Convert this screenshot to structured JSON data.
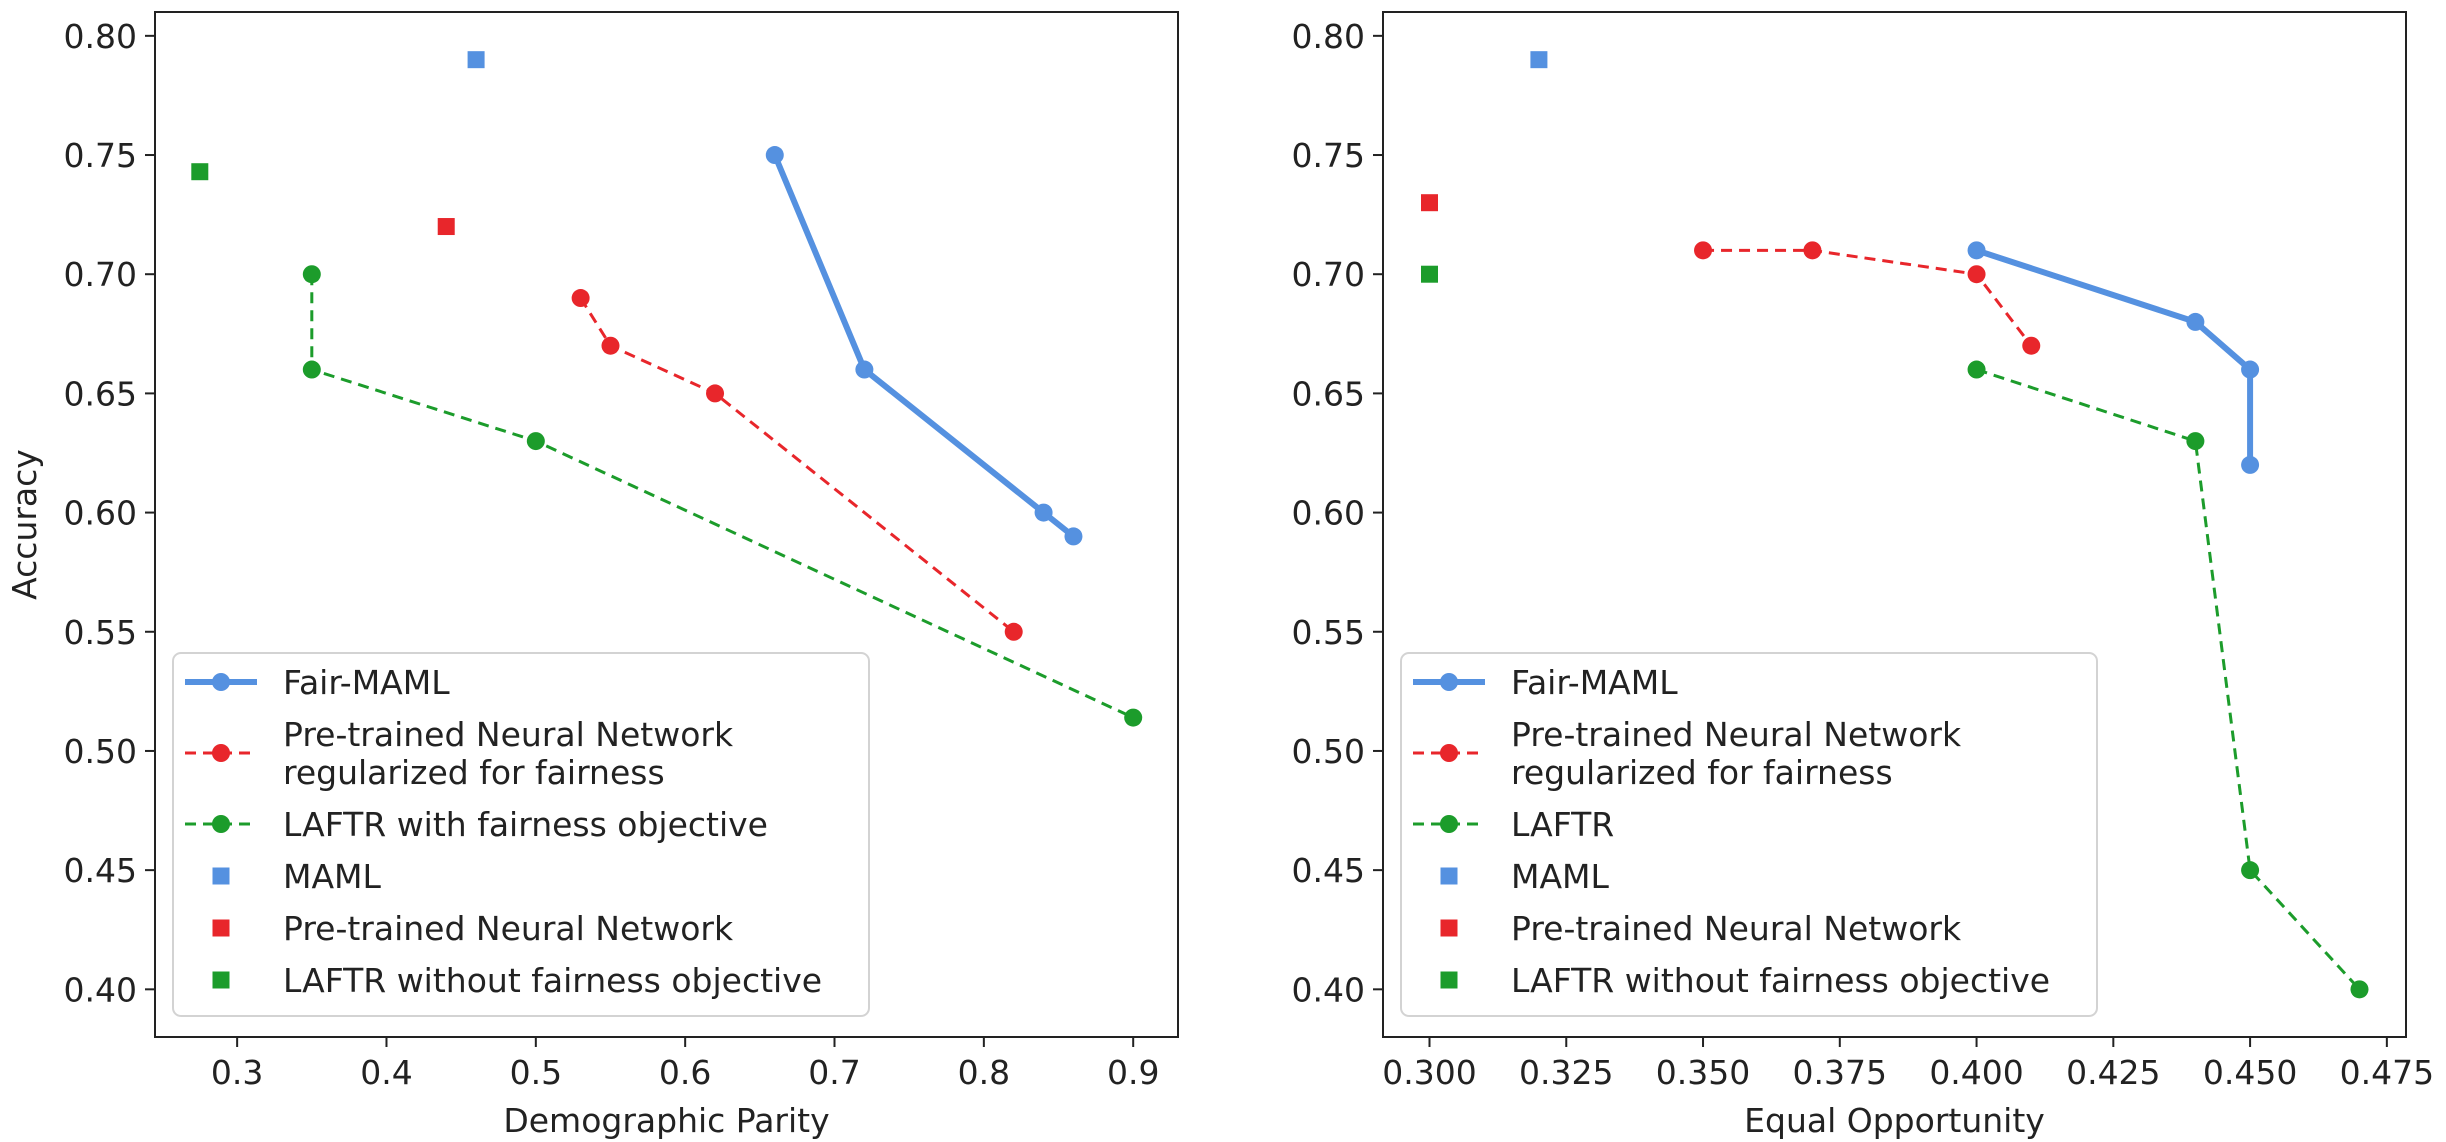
{
  "chart_data": [
    {
      "type": "line",
      "xlabel": "Demographic Parity",
      "ylabel": "Accuracy",
      "xlim": [
        0.245,
        0.93
      ],
      "ylim": [
        0.38,
        0.81
      ],
      "xticks": [
        "0.3",
        "0.4",
        "0.5",
        "0.6",
        "0.7",
        "0.8",
        "0.9"
      ],
      "xtick_values": [
        0.3,
        0.4,
        0.5,
        0.6,
        0.7,
        0.8,
        0.9
      ],
      "yticks": [
        "0.40",
        "0.45",
        "0.50",
        "0.55",
        "0.60",
        "0.65",
        "0.70",
        "0.75",
        "0.80"
      ],
      "ytick_values": [
        0.4,
        0.45,
        0.5,
        0.55,
        0.6,
        0.65,
        0.7,
        0.75,
        0.8
      ],
      "legend_position": "lower-left",
      "grid": false,
      "series": [
        {
          "name": "Fair-MAML",
          "style": "solid",
          "marker": "circle",
          "color": "#5591e0",
          "x": [
            0.66,
            0.72,
            0.84,
            0.86
          ],
          "y": [
            0.75,
            0.66,
            0.6,
            0.59
          ]
        },
        {
          "name": "Pre-trained Neural Network\nregularized for fairness",
          "style": "dashed",
          "marker": "circle",
          "color": "#e8262b",
          "x": [
            0.53,
            0.55,
            0.62,
            0.82
          ],
          "y": [
            0.69,
            0.67,
            0.65,
            0.55
          ]
        },
        {
          "name": "LAFTR with fairness objective",
          "style": "dashed",
          "marker": "circle",
          "color": "#1c9c2b",
          "x": [
            0.35,
            0.35,
            0.5,
            0.9
          ],
          "y": [
            0.7,
            0.66,
            0.63,
            0.514
          ]
        },
        {
          "name": "MAML",
          "style": "none",
          "marker": "square",
          "color": "#5591e0",
          "x": [
            0.46
          ],
          "y": [
            0.79
          ]
        },
        {
          "name": "Pre-trained Neural Network",
          "style": "none",
          "marker": "square",
          "color": "#e8262b",
          "x": [
            0.44
          ],
          "y": [
            0.72
          ]
        },
        {
          "name": "LAFTR without fairness objective",
          "style": "none",
          "marker": "square",
          "color": "#1c9c2b",
          "x": [
            0.275
          ],
          "y": [
            0.743
          ]
        }
      ]
    },
    {
      "type": "line",
      "xlabel": "Equal Opportunity",
      "ylabel": "",
      "xlim": [
        0.2915,
        0.4785
      ],
      "ylim": [
        0.38,
        0.81
      ],
      "xticks": [
        "0.300",
        "0.325",
        "0.350",
        "0.375",
        "0.400",
        "0.425",
        "0.450",
        "0.475"
      ],
      "xtick_values": [
        0.3,
        0.325,
        0.35,
        0.375,
        0.4,
        0.425,
        0.45,
        0.475
      ],
      "yticks": [
        "0.40",
        "0.45",
        "0.50",
        "0.55",
        "0.60",
        "0.65",
        "0.70",
        "0.75",
        "0.80"
      ],
      "ytick_values": [
        0.4,
        0.45,
        0.5,
        0.55,
        0.6,
        0.65,
        0.7,
        0.75,
        0.8
      ],
      "legend_position": "lower-left",
      "grid": false,
      "series": [
        {
          "name": "Fair-MAML",
          "style": "solid",
          "marker": "circle",
          "color": "#5591e0",
          "x": [
            0.4,
            0.44,
            0.45,
            0.45
          ],
          "y": [
            0.71,
            0.68,
            0.66,
            0.62
          ]
        },
        {
          "name": "Pre-trained Neural Network\nregularized for fairness",
          "style": "dashed",
          "marker": "circle",
          "color": "#e8262b",
          "x": [
            0.35,
            0.37,
            0.4,
            0.41
          ],
          "y": [
            0.71,
            0.71,
            0.7,
            0.67
          ]
        },
        {
          "name": "LAFTR",
          "style": "dashed",
          "marker": "circle",
          "color": "#1c9c2b",
          "x": [
            0.4,
            0.44,
            0.45,
            0.47
          ],
          "y": [
            0.66,
            0.63,
            0.45,
            0.4
          ]
        },
        {
          "name": "MAML",
          "style": "none",
          "marker": "square",
          "color": "#5591e0",
          "x": [
            0.32
          ],
          "y": [
            0.79
          ]
        },
        {
          "name": "Pre-trained Neural Network",
          "style": "none",
          "marker": "square",
          "color": "#e8262b",
          "x": [
            0.3
          ],
          "y": [
            0.73
          ]
        },
        {
          "name": "LAFTR without fairness objective",
          "style": "none",
          "marker": "square",
          "color": "#1c9c2b",
          "x": [
            0.3
          ],
          "y": [
            0.7
          ]
        }
      ]
    }
  ]
}
